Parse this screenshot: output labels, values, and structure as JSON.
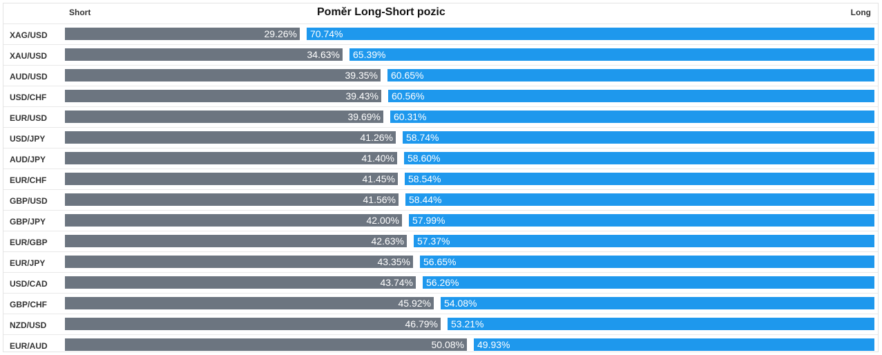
{
  "header": {
    "short_label": "Short",
    "title": "Poměr Long-Short pozic",
    "long_label": "Long"
  },
  "colors": {
    "short": "#6c7580",
    "long": "#1e98ed"
  },
  "chart_data": {
    "type": "bar",
    "title": "Poměr Long-Short pozic",
    "orientation": "horizontal-stacked",
    "categories": [
      "XAG/USD",
      "XAU/USD",
      "AUD/USD",
      "USD/CHF",
      "EUR/USD",
      "USD/JPY",
      "AUD/JPY",
      "EUR/CHF",
      "GBP/USD",
      "GBP/JPY",
      "EUR/GBP",
      "EUR/JPY",
      "USD/CAD",
      "GBP/CHF",
      "NZD/USD",
      "EUR/AUD"
    ],
    "series": [
      {
        "name": "Short",
        "values": [
          29.26,
          34.63,
          39.35,
          39.43,
          39.69,
          41.26,
          41.4,
          41.45,
          41.56,
          42.0,
          42.63,
          43.35,
          43.74,
          45.92,
          46.79,
          50.08
        ],
        "labels": [
          "29.26%",
          "34.63%",
          "39.35%",
          "39.43%",
          "39.69%",
          "41.26%",
          "41.40%",
          "41.45%",
          "41.56%",
          "42.00%",
          "42.63%",
          "43.35%",
          "43.74%",
          "45.92%",
          "46.79%",
          "50.08%"
        ]
      },
      {
        "name": "Long",
        "values": [
          70.74,
          65.39,
          60.65,
          60.56,
          60.31,
          58.74,
          58.6,
          58.54,
          58.44,
          57.99,
          57.37,
          56.65,
          56.26,
          54.08,
          53.21,
          49.93
        ],
        "labels": [
          "70.74%",
          "65.39%",
          "60.65%",
          "60.56%",
          "60.31%",
          "58.74%",
          "58.60%",
          "58.54%",
          "58.44%",
          "57.99%",
          "57.37%",
          "56.65%",
          "56.26%",
          "54.08%",
          "53.21%",
          "49.93%"
        ]
      }
    ]
  }
}
